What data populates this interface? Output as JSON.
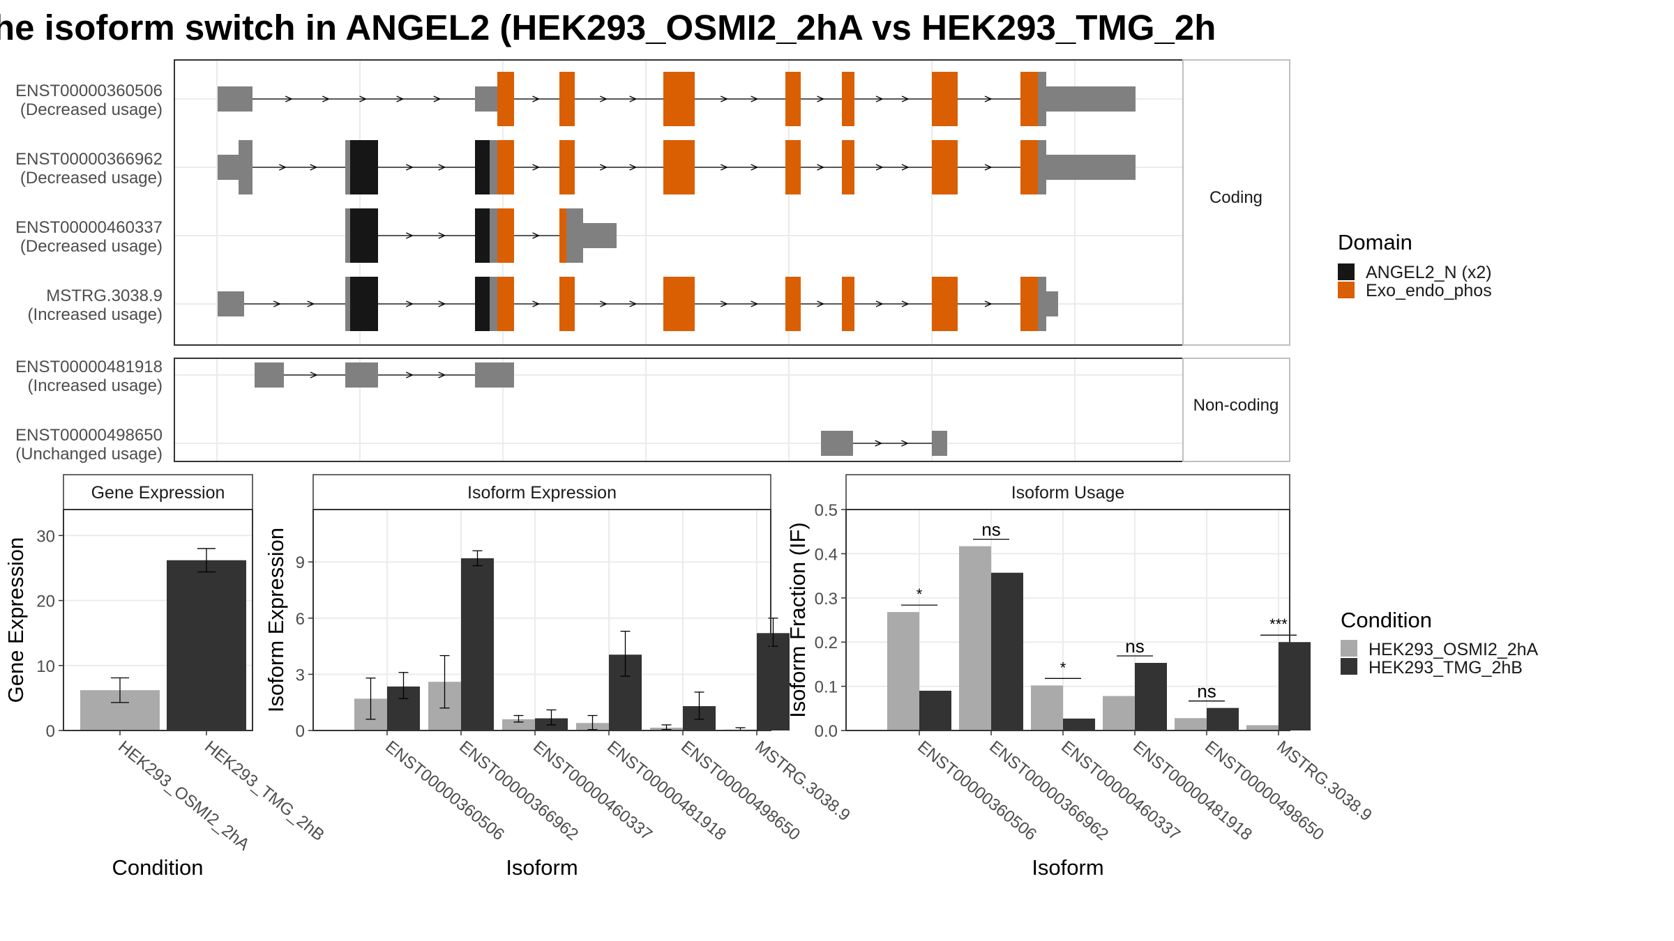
{
  "title": "he isoform switch in ANGEL2 (HEK293_OSMI2_2hA vs HEK293_TMG_2h",
  "colors": {
    "utr": "#808080",
    "angel2_n": "#161616",
    "exo_endo_phos": "#d95f02",
    "cond_a": "#aaaaaa",
    "cond_b": "#333333",
    "grid": "#ebebeb",
    "panel_border": "#333333",
    "strip_border": "#bfbfbf"
  },
  "legends": {
    "domain": {
      "title": "Domain",
      "items": [
        {
          "label": "ANGEL2_N (x2)",
          "color": "#161616"
        },
        {
          "label": "Exo_endo_phos",
          "color": "#d95f02"
        }
      ]
    },
    "condition": {
      "title": "Condition",
      "items": [
        {
          "label": "HEK293_OSMI2_2hA",
          "color": "#aaaaaa"
        },
        {
          "label": "HEK293_TMG_2hB",
          "color": "#333333"
        }
      ]
    }
  },
  "transcript_panels": [
    {
      "strip": "Coding",
      "transcripts": [
        {
          "id": "ENST00000360506",
          "usage": "(Decreased usage)"
        },
        {
          "id": "ENST00000366962",
          "usage": "(Decreased usage)"
        },
        {
          "id": "ENST00000460337",
          "usage": "(Decreased usage)"
        },
        {
          "id": "MSTRG.3038.9",
          "usage": "(Increased usage)"
        }
      ]
    },
    {
      "strip": "Non-coding",
      "transcripts": [
        {
          "id": "ENST00000481918",
          "usage": "(Increased usage)"
        },
        {
          "id": "ENST00000498650",
          "usage": "(Unchanged usage)"
        }
      ]
    }
  ],
  "chart_data": [
    {
      "type": "bar",
      "title": "Gene Expression",
      "xlabel": "Condition",
      "ylabel": "Gene Expression",
      "ylim": [
        0,
        34
      ],
      "yticks": [
        0,
        10,
        20,
        30
      ],
      "categories": [
        "HEK293_OSMI2_2hA",
        "HEK293_TMG_2hB"
      ],
      "values": [
        6.2,
        26.2
      ],
      "errors": [
        [
          4.3,
          8.1
        ],
        [
          24.4,
          28.0
        ]
      ]
    },
    {
      "type": "bar",
      "title": "Isoform Expression",
      "xlabel": "Isoform",
      "ylabel": "Isoform Expression",
      "ylim": [
        0,
        11.8
      ],
      "yticks": [
        0,
        3,
        6,
        9
      ],
      "categories": [
        "ENST00000360506",
        "ENST00000366962",
        "ENST00000460337",
        "ENST00000481918",
        "ENST00000498650",
        "MSTRG.3038.9"
      ],
      "series": [
        {
          "name": "HEK293_OSMI2_2hA",
          "values": [
            1.7,
            2.6,
            0.6,
            0.4,
            0.15,
            0.05
          ],
          "errors": [
            [
              0.6,
              2.8
            ],
            [
              1.2,
              4.0
            ],
            [
              0.45,
              0.8
            ],
            [
              0.05,
              0.8
            ],
            [
              0.05,
              0.3
            ],
            [
              0.0,
              0.15
            ]
          ]
        },
        {
          "name": "HEK293_TMG_2hB",
          "values": [
            2.35,
            9.2,
            0.65,
            4.05,
            1.3,
            5.2
          ],
          "errors": [
            [
              1.7,
              3.1
            ],
            [
              8.8,
              9.6
            ],
            [
              0.3,
              1.1
            ],
            [
              2.9,
              5.3
            ],
            [
              0.6,
              2.05
            ],
            [
              4.5,
              6.0
            ]
          ]
        }
      ]
    },
    {
      "type": "bar",
      "title": "Isoform Usage",
      "xlabel": "Isoform",
      "ylabel": "Isoform Fraction (IF)",
      "ylim": [
        0,
        0.5
      ],
      "yticks": [
        "0.0",
        "0.1",
        "0.2",
        "0.3",
        "0.4",
        "0.5"
      ],
      "categories": [
        "ENST00000360506",
        "ENST00000366962",
        "ENST00000460337",
        "ENST00000481918",
        "ENST00000498650",
        "MSTRG.3038.9"
      ],
      "series": [
        {
          "name": "HEK293_OSMI2_2hA",
          "values": [
            0.268,
            0.417,
            0.102,
            0.078,
            0.028,
            0.012
          ]
        },
        {
          "name": "HEK293_TMG_2hB",
          "values": [
            0.09,
            0.357,
            0.027,
            0.153,
            0.051,
            0.2
          ]
        }
      ],
      "significance": [
        "*",
        "ns",
        "*",
        "ns",
        "ns",
        "***"
      ]
    }
  ]
}
